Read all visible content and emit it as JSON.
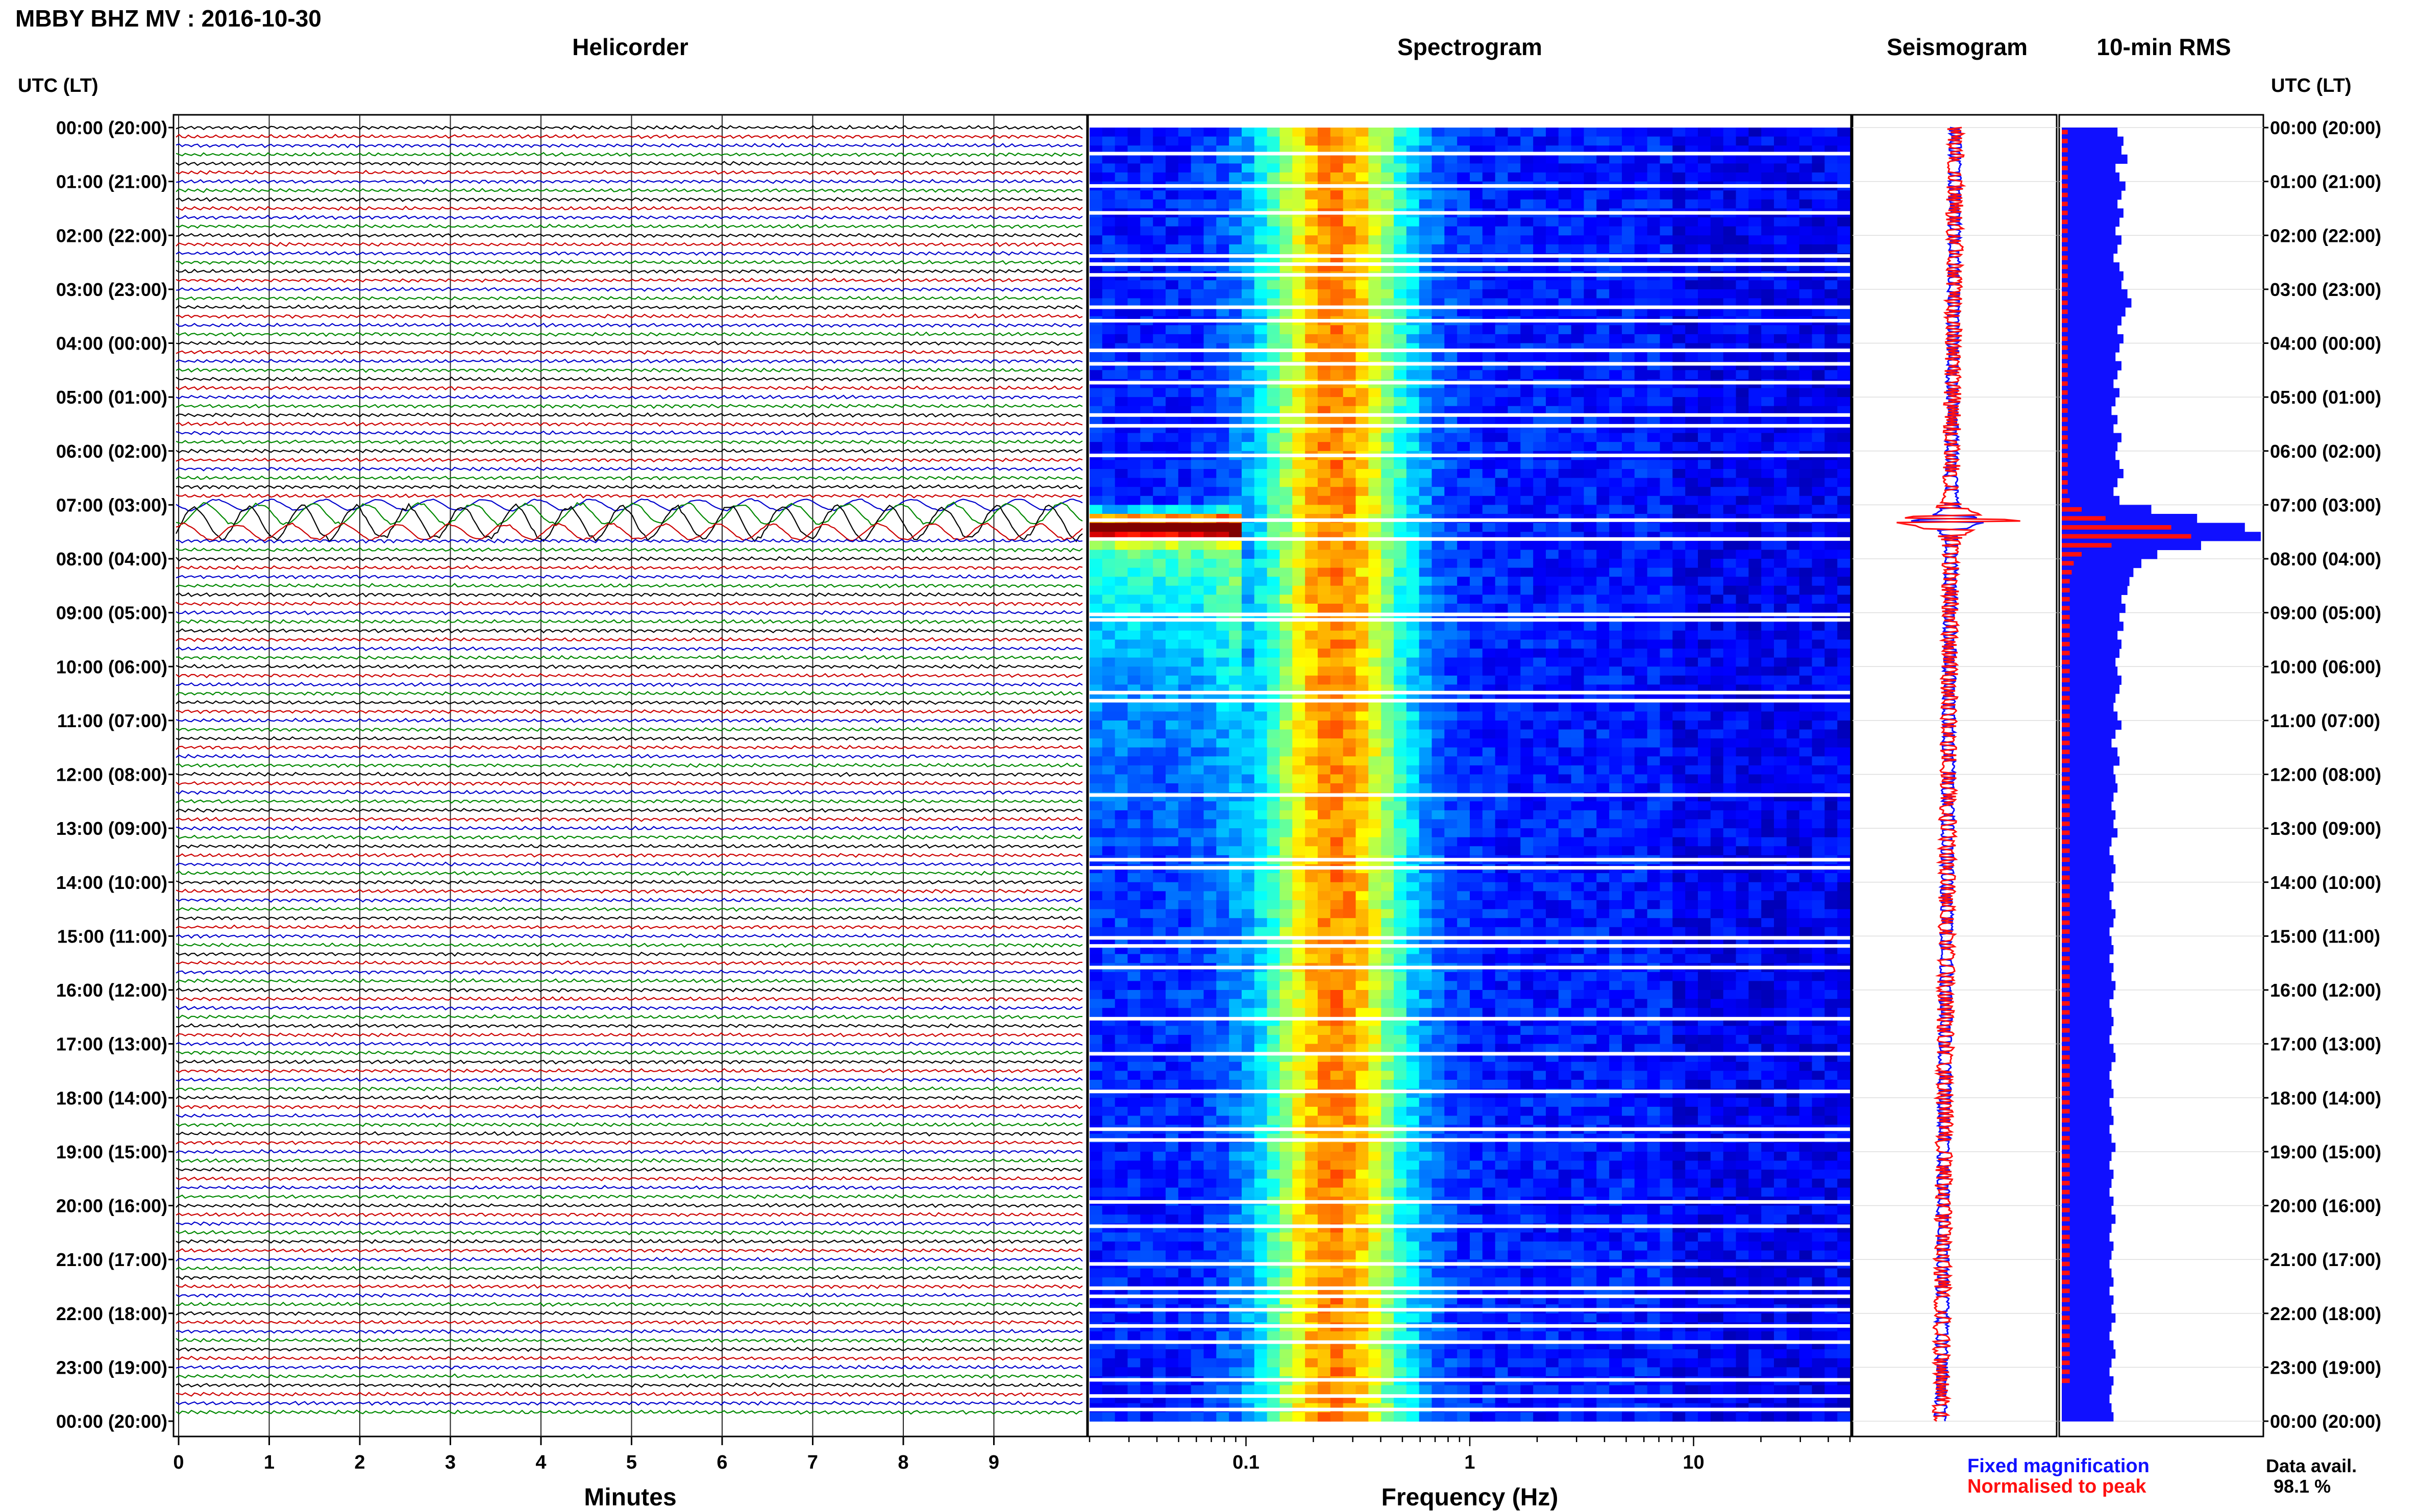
{
  "header": {
    "title": "MBBY BHZ MV : 2016-10-30"
  },
  "panels": {
    "helicorder": "Helicorder",
    "spectrogram": "Spectrogram",
    "seismogram": "Seismogram",
    "rms": "10-min RMS"
  },
  "axis": {
    "time_header_left": "UTC (LT)",
    "time_header_right": "UTC (LT)",
    "time_labels": [
      "00:00 (20:00)",
      "01:00 (21:00)",
      "02:00 (22:00)",
      "03:00 (23:00)",
      "04:00 (00:00)",
      "05:00 (01:00)",
      "06:00 (02:00)",
      "07:00 (03:00)",
      "08:00 (04:00)",
      "09:00 (05:00)",
      "10:00 (06:00)",
      "11:00 (07:00)",
      "12:00 (08:00)",
      "13:00 (09:00)",
      "14:00 (10:00)",
      "15:00 (11:00)",
      "16:00 (12:00)",
      "17:00 (13:00)",
      "18:00 (14:00)",
      "19:00 (15:00)",
      "20:00 (16:00)",
      "21:00 (17:00)",
      "22:00 (18:00)",
      "23:00 (19:00)",
      "00:00 (20:00)"
    ],
    "minutes_label": "Minutes",
    "minutes_ticks": [
      "0",
      "1",
      "2",
      "3",
      "4",
      "5",
      "6",
      "7",
      "8",
      "9"
    ],
    "frequency_label": "Frequency (Hz)",
    "frequency_ticks": [
      "0.1",
      "1",
      "10"
    ]
  },
  "legend": {
    "fixed": "Fixed magnification",
    "normalised": "Normalised to peak",
    "fixed_color": "#1010ff",
    "normalised_color": "#ff1010"
  },
  "availability": {
    "label": "Data avail.",
    "value": "98.1 %"
  },
  "colors": {
    "trace_cycle": [
      "#000000",
      "#cc0000",
      "#0000cc",
      "#008800"
    ]
  },
  "chart_data": [
    {
      "type": "line",
      "title": "Helicorder",
      "xlabel": "Minutes",
      "xlim": [
        0,
        10
      ],
      "ylabel": "UTC (LT)",
      "note_events": [
        "07:30 UTC large wave train"
      ],
      "rows_per_hour": 6,
      "event_hour_utc": 7.3
    },
    {
      "type": "heatmap",
      "title": "Spectrogram",
      "xlabel": "Frequency (Hz)",
      "x_scale": "log",
      "xlim": [
        0.02,
        50
      ],
      "peak_band_hz": [
        0.15,
        0.35
      ],
      "event_hour_utc": 7.3
    },
    {
      "type": "line",
      "title": "Seismogram",
      "series": [
        {
          "name": "Fixed magnification"
        },
        {
          "name": "Normalised to peak"
        }
      ],
      "event_hour_utc": 7.3
    },
    {
      "type": "bar",
      "title": "10-min RMS",
      "orientation": "horizontal",
      "series": [
        {
          "name": "Fixed magnification",
          "values": [
            0.28,
            0.31,
            0.3,
            0.33,
            0.27,
            0.29,
            0.32,
            0.3,
            0.28,
            0.31,
            0.29,
            0.27,
            0.3,
            0.28,
            0.26,
            0.29,
            0.31,
            0.3,
            0.33,
            0.35,
            0.32,
            0.3,
            0.28,
            0.31,
            0.29,
            0.27,
            0.3,
            0.28,
            0.26,
            0.29,
            0.27,
            0.25,
            0.28,
            0.26,
            0.3,
            0.28,
            0.27,
            0.29,
            0.31,
            0.28,
            0.26,
            0.29,
            0.45,
            0.68,
            0.92,
            1.0,
            0.7,
            0.48,
            0.4,
            0.36,
            0.34,
            0.33,
            0.3,
            0.32,
            0.29,
            0.31,
            0.28,
            0.3,
            0.29,
            0.27,
            0.28,
            0.3,
            0.29,
            0.27,
            0.26,
            0.28,
            0.3,
            0.27,
            0.25,
            0.28,
            0.29,
            0.26,
            0.27,
            0.28,
            0.26,
            0.25,
            0.27,
            0.26,
            0.28,
            0.25,
            0.24,
            0.26,
            0.27,
            0.25,
            0.26,
            0.24,
            0.25,
            0.27,
            0.26,
            0.24,
            0.25,
            0.26,
            0.24,
            0.26,
            0.25,
            0.27,
            0.26,
            0.24,
            0.25,
            0.26,
            0.25,
            0.24,
            0.26,
            0.27,
            0.25,
            0.24,
            0.25,
            0.26,
            0.24,
            0.25,
            0.26,
            0.24,
            0.25,
            0.27,
            0.25,
            0.24,
            0.26,
            0.25,
            0.24,
            0.26,
            0.25,
            0.27,
            0.25,
            0.24,
            0.26,
            0.25,
            0.24,
            0.25,
            0.26,
            0.24,
            0.26,
            0.25,
            0.27,
            0.25,
            0.24,
            0.26,
            0.27,
            0.25,
            0.24,
            0.26,
            0.25,
            0.24,
            0.25,
            0.26
          ]
        },
        {
          "name": "Normalised to peak",
          "values": [
            0.03,
            0.03,
            0.03,
            0.03,
            0.03,
            0.03,
            0.03,
            0.03,
            0.03,
            0.03,
            0.03,
            0.03,
            0.03,
            0.03,
            0.03,
            0.03,
            0.03,
            0.03,
            0.03,
            0.03,
            0.03,
            0.03,
            0.03,
            0.03,
            0.03,
            0.03,
            0.03,
            0.03,
            0.03,
            0.03,
            0.03,
            0.03,
            0.03,
            0.03,
            0.03,
            0.03,
            0.03,
            0.03,
            0.03,
            0.03,
            0.03,
            0.04,
            0.1,
            0.22,
            0.55,
            0.65,
            0.25,
            0.1,
            0.06,
            0.05,
            0.04,
            0.04,
            0.04,
            0.04,
            0.04,
            0.04,
            0.04,
            0.04,
            0.04,
            0.04,
            0.04,
            0.04,
            0.04,
            0.04,
            0.04,
            0.04,
            0.04,
            0.04,
            0.04,
            0.04,
            0.04,
            0.04,
            0.04,
            0.04,
            0.04,
            0.04,
            0.04,
            0.04,
            0.04,
            0.04,
            0.04,
            0.04,
            0.04,
            0.04,
            0.04,
            0.04,
            0.04,
            0.04,
            0.04,
            0.04,
            0.04,
            0.04,
            0.04,
            0.04,
            0.04,
            0.04,
            0.04,
            0.04,
            0.04,
            0.04,
            0.04,
            0.04,
            0.04,
            0.04,
            0.04,
            0.04,
            0.04,
            0.04,
            0.04,
            0.04,
            0.04,
            0.04,
            0.04,
            0.04,
            0.04,
            0.04,
            0.04,
            0.04,
            0.04,
            0.04,
            0.04,
            0.04,
            0.04,
            0.04,
            0.04,
            0.04,
            0.04,
            0.04,
            0.04,
            0.04,
            0.04,
            0.04,
            0.04,
            0.04,
            0.04,
            0.04,
            0.04,
            0.04,
            0.04,
            0.04
          ]
        }
      ]
    }
  ]
}
